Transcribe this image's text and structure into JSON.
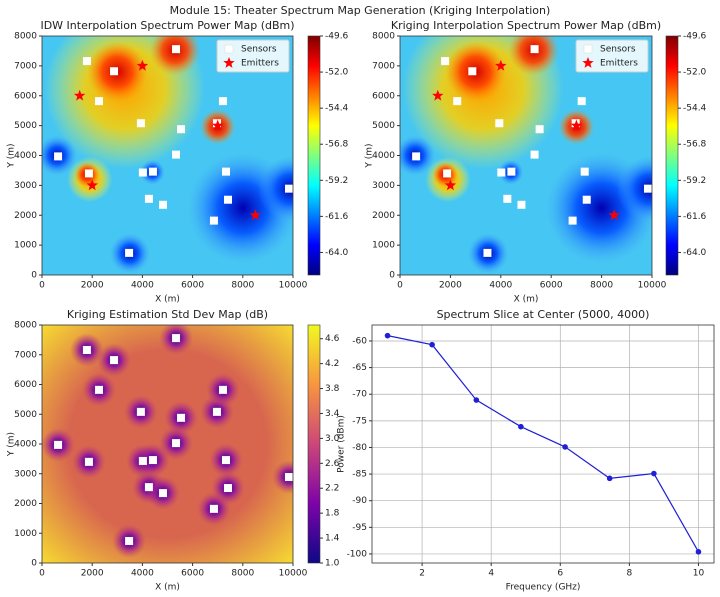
{
  "title": "Module 15: Theater Spectrum Map Generation (Kriging Interpolation)",
  "chart_data": [
    {
      "type": "contour",
      "title": "IDW Interpolation Spectrum Power Map (dBm)",
      "x_label": "X (m)",
      "y_label": "Y (m)",
      "xlim": [
        0,
        10000
      ],
      "ylim": [
        0,
        8000
      ],
      "xticks": [
        0,
        2000,
        4000,
        6000,
        8000,
        10000
      ],
      "yticks": [
        0,
        1000,
        2000,
        3000,
        4000,
        5000,
        6000,
        7000,
        8000
      ],
      "colormap": "jet",
      "colorbar": {
        "lim": [
          -65.5,
          -49.6
        ],
        "ticks": [
          -49.6,
          {
            "value": -52,
            "label": "-52.0"
          },
          -54.4,
          -56.8,
          -59.2,
          -61.6,
          {
            "value": -64,
            "label": "-64.0"
          }
        ]
      },
      "legend": "upper right",
      "series": [
        {
          "name": "Sensors",
          "color": "#ffffff",
          "marker": "square",
          "x": [
            1790,
            2870,
            2270,
            5340,
            3940,
            5540,
            6970,
            7210,
            640,
            1870,
            4020,
            4420,
            5340,
            7330,
            4260,
            4820,
            7410,
            6850,
            9840,
            3470
          ],
          "y": [
            7160,
            6820,
            5820,
            7560,
            5080,
            4880,
            5080,
            5820,
            3970,
            3400,
            3430,
            3460,
            4030,
            3460,
            2550,
            2350,
            2520,
            1820,
            2890,
            740
          ]
        },
        {
          "name": "Emitters",
          "color": "#ff0000",
          "marker": "star",
          "x": [
            1500,
            4000,
            7000,
            2000,
            8500
          ],
          "y": [
            6000,
            7000,
            5000,
            3000,
            2000
          ]
        }
      ]
    },
    {
      "type": "contour",
      "title": "Kriging Interpolation Spectrum Power Map (dBm)",
      "x_label": "X (m)",
      "y_label": "Y (m)",
      "xlim": [
        0,
        10000
      ],
      "ylim": [
        0,
        8000
      ],
      "xticks": [
        0,
        2000,
        4000,
        6000,
        8000,
        10000
      ],
      "yticks": [
        0,
        1000,
        2000,
        3000,
        4000,
        5000,
        6000,
        7000,
        8000
      ],
      "colormap": "jet",
      "colorbar": {
        "lim": [
          -65.5,
          -49.6
        ],
        "ticks": [
          -49.6,
          {
            "value": -52,
            "label": "-52.0"
          },
          -54.4,
          -56.8,
          -59.2,
          -61.6,
          {
            "value": -64,
            "label": "-64.0"
          }
        ]
      },
      "legend": "upper right",
      "series": [
        {
          "name": "Sensors",
          "color": "#ffffff",
          "marker": "square",
          "x": [
            1790,
            2870,
            2270,
            5340,
            3940,
            5540,
            6970,
            7210,
            640,
            1870,
            4020,
            4420,
            5340,
            7330,
            4260,
            4820,
            7410,
            6850,
            9840,
            3470
          ],
          "y": [
            7160,
            6820,
            5820,
            7560,
            5080,
            4880,
            5080,
            5820,
            3970,
            3400,
            3430,
            3460,
            4030,
            3460,
            2550,
            2350,
            2520,
            1820,
            2890,
            740
          ]
        },
        {
          "name": "Emitters",
          "color": "#ff0000",
          "marker": "star",
          "x": [
            1500,
            4000,
            7000,
            2000,
            8500
          ],
          "y": [
            6000,
            7000,
            5000,
            3000,
            2000
          ]
        }
      ]
    },
    {
      "type": "contour",
      "title": "Kriging Estimation Std Dev Map (dB)",
      "x_label": "X (m)",
      "y_label": "Y (m)",
      "xlim": [
        0,
        10000
      ],
      "ylim": [
        0,
        8000
      ],
      "xticks": [
        0,
        2000,
        4000,
        6000,
        8000,
        10000
      ],
      "yticks": [
        0,
        1000,
        2000,
        3000,
        4000,
        5000,
        6000,
        7000,
        8000
      ],
      "colormap": "plasma",
      "colorbar": {
        "lim": [
          1,
          4.82
        ],
        "ticks": [
          {
            "value": 1,
            "label": "1.0"
          },
          1.4,
          1.8,
          2.2,
          2.6,
          {
            "value": 3,
            "label": "3.0"
          },
          3.4,
          3.8,
          4.2,
          4.6
        ]
      },
      "series": [
        {
          "color": "#ffffff",
          "marker": "square",
          "x": [
            1790,
            2870,
            2270,
            5340,
            3940,
            5540,
            6970,
            7210,
            640,
            1870,
            4020,
            4420,
            5340,
            7330,
            4260,
            4820,
            7410,
            6850,
            9840,
            3470
          ],
          "y": [
            7160,
            6820,
            5820,
            7560,
            5080,
            4880,
            5080,
            5820,
            3970,
            3400,
            3430,
            3460,
            4030,
            3460,
            2550,
            2350,
            2520,
            1820,
            2890,
            740
          ]
        }
      ]
    },
    {
      "type": "line",
      "title": "Spectrum Slice at Center (5000, 4000)",
      "x_label": "Frequency (GHz)",
      "y_label": "Power (dBm)",
      "x": [
        1,
        2.29,
        3.57,
        4.86,
        6.14,
        7.43,
        8.71,
        10
      ],
      "xlim": [
        0.55,
        10.45
      ],
      "ylim": [
        -101.7,
        -57.0
      ],
      "xticks": [
        2,
        4,
        6,
        8,
        10
      ],
      "yticks": [
        -60,
        -65,
        -70,
        -75,
        -80,
        -85,
        -90,
        -95,
        -100
      ],
      "grid": true,
      "series": [
        {
          "color": "#1f1fd6",
          "values": [
            -59,
            -60.7,
            -71.1,
            -76.1,
            -79.9,
            -85.8,
            -84.9,
            -99.6
          ]
        }
      ]
    }
  ]
}
